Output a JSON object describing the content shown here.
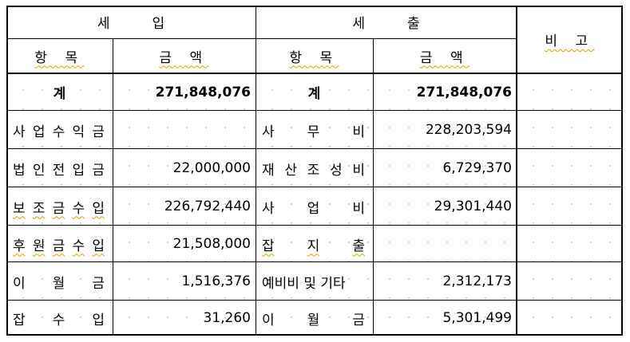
{
  "headers": {
    "revenue": "세  입",
    "expense": "세  출",
    "remarks": "비 고",
    "item": "항 목",
    "amount": "금 액"
  },
  "totals": {
    "revenue_label": "계",
    "revenue_amount": "271,848,076",
    "expense_label": "계",
    "expense_amount": "271,848,076"
  },
  "revenue": [
    {
      "label": "사업수익금",
      "amount": ""
    },
    {
      "label": "법인전입금",
      "amount": "22,000,000"
    },
    {
      "label": "보조금수입",
      "amount": "226,792,440"
    },
    {
      "label": "후원금수입",
      "amount": "21,508,000"
    },
    {
      "label": "이 월 금",
      "amount": "1,516,376"
    },
    {
      "label": "잡 수 입",
      "amount": "31,260"
    }
  ],
  "expense": [
    {
      "label": "사 무 비",
      "amount": "228,203,594"
    },
    {
      "label": "재산조성비",
      "amount": "6,729,370"
    },
    {
      "label": "사 업 비",
      "amount": "29,301,440"
    },
    {
      "label": "잡 지 출",
      "amount": ""
    },
    {
      "label": "예비비 및 기타",
      "amount": "2,312,173"
    },
    {
      "label": "이 월 금",
      "amount": "5,301,499"
    }
  ]
}
